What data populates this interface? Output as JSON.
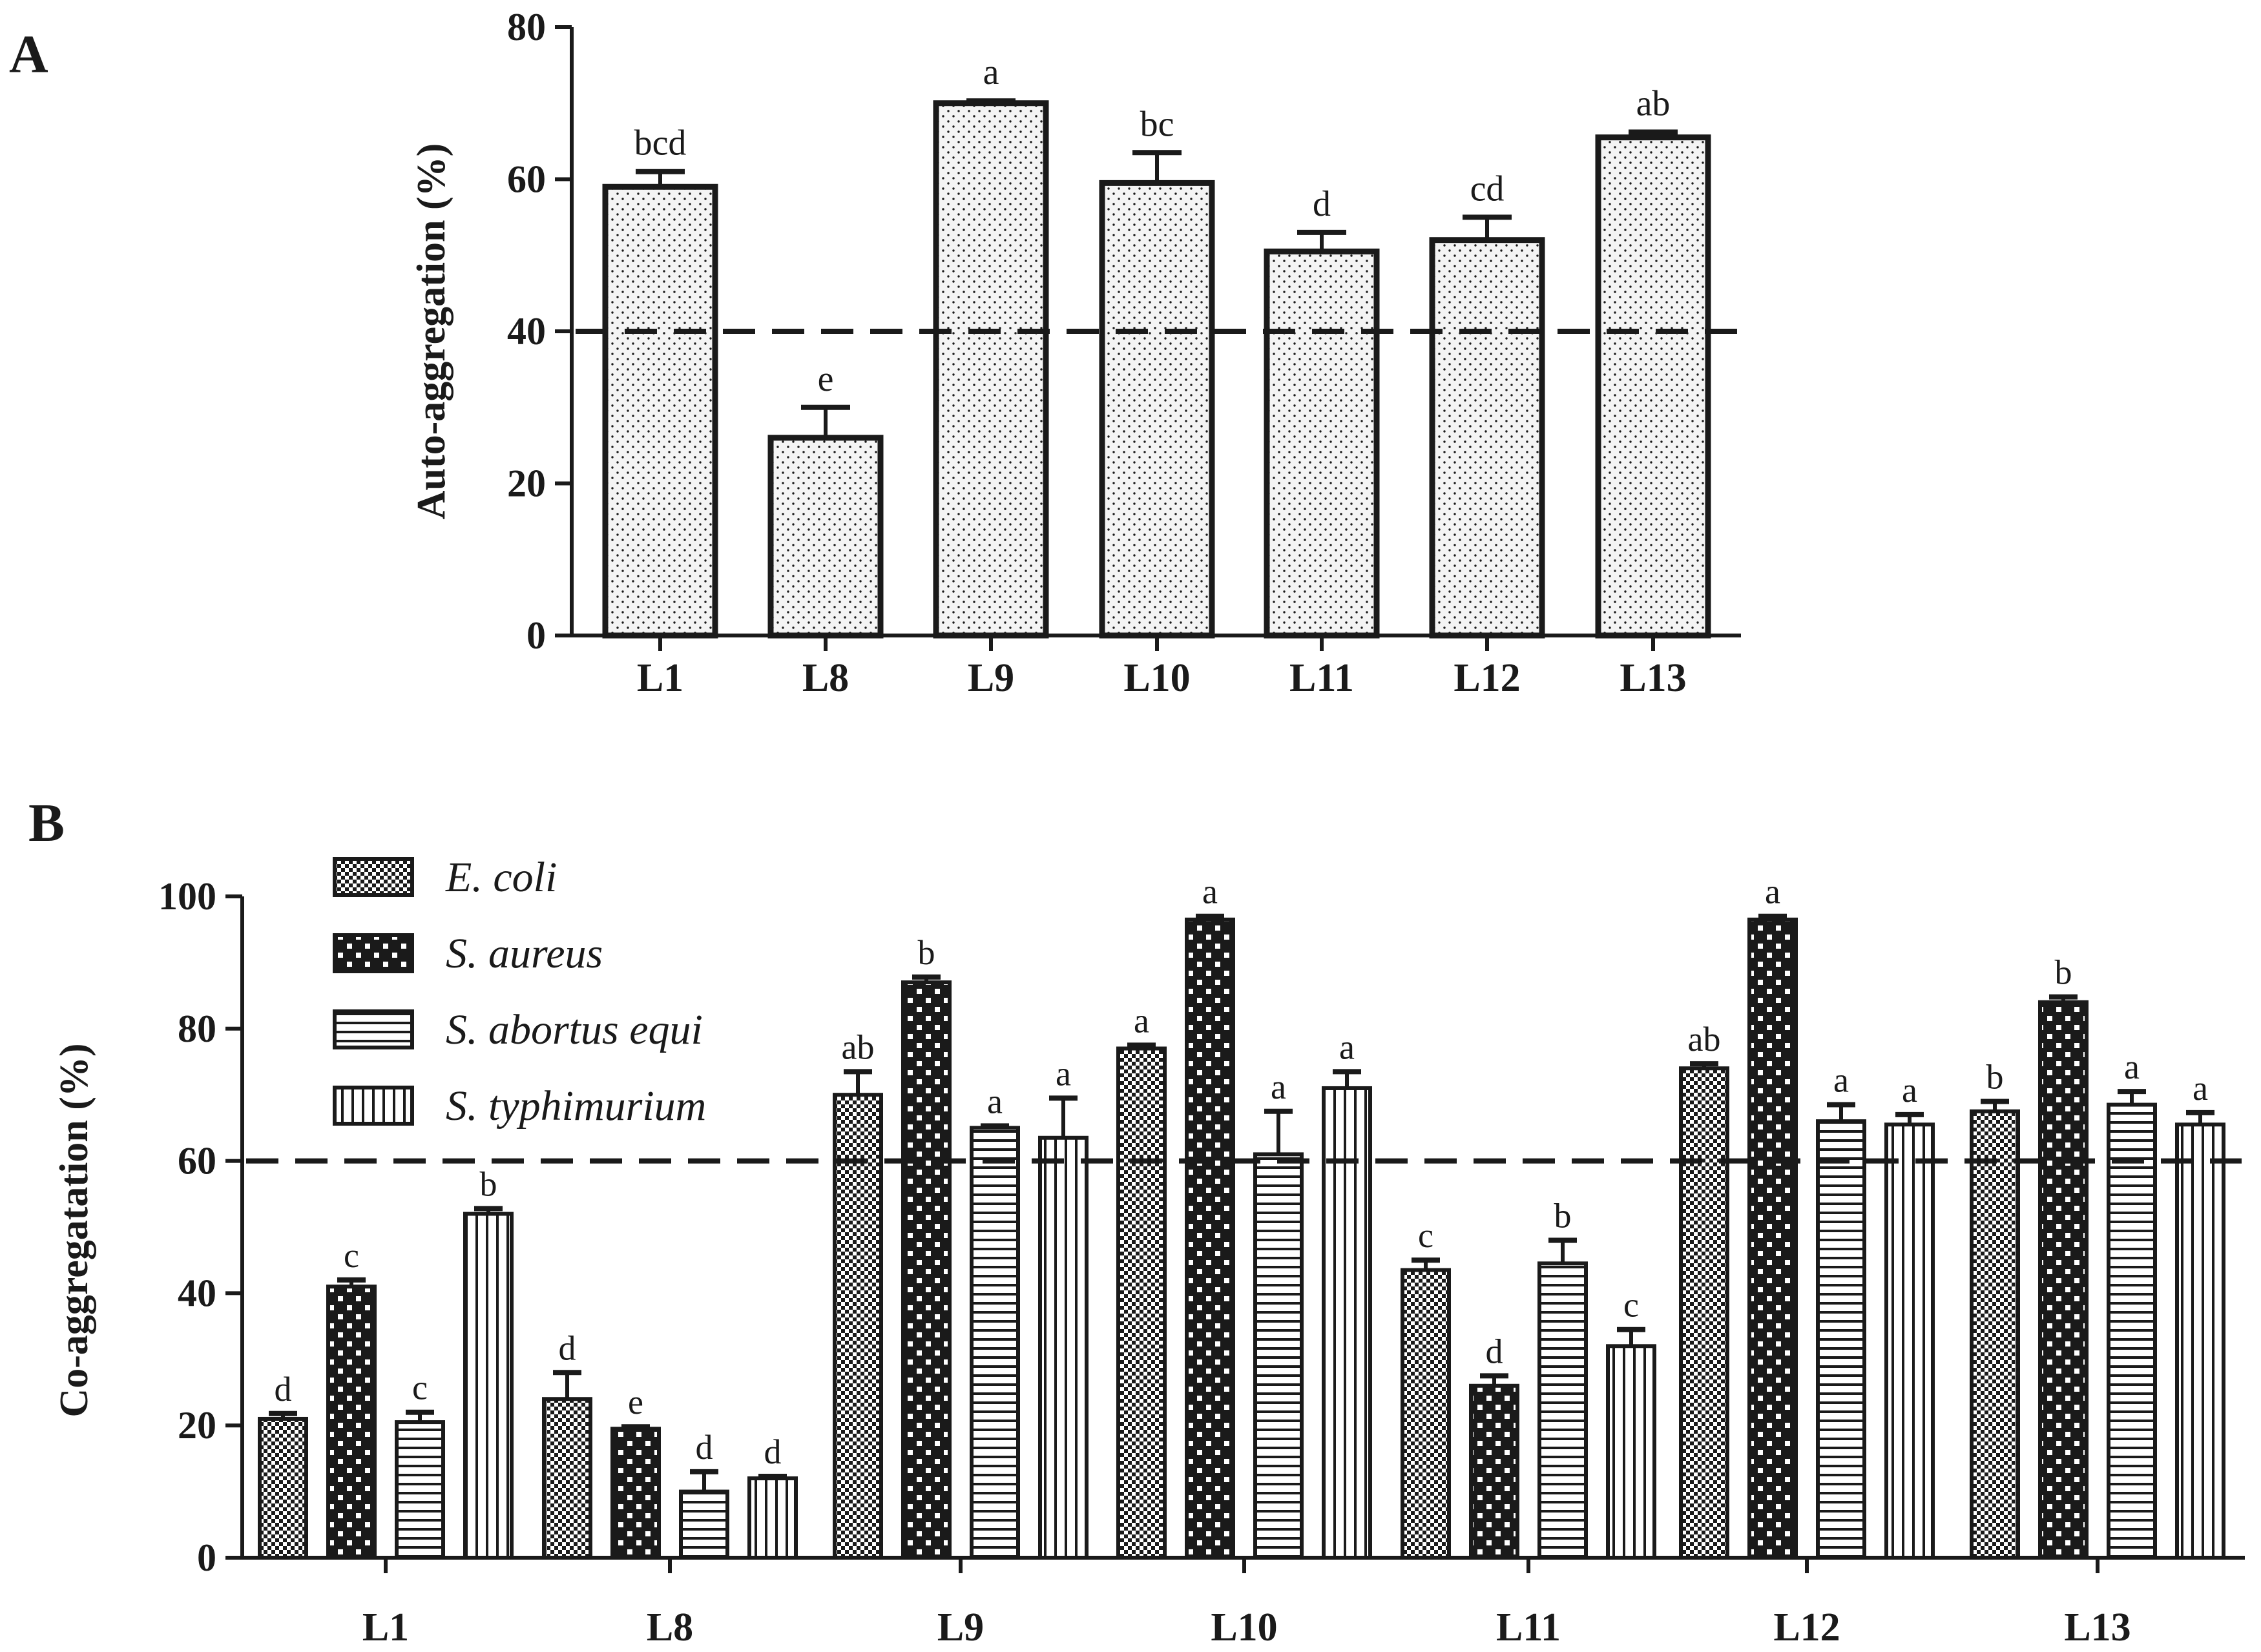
{
  "colors": {
    "ink": "#1a1a1a",
    "background": "#ffffff",
    "bar_fill": "#f4f4f4"
  },
  "chart_data": [
    {
      "panel": "A",
      "type": "bar",
      "title": "",
      "xlabel": "",
      "ylabel": "Auto-aggregation (%)",
      "ylim": [
        0,
        80
      ],
      "yticks": [
        0,
        20,
        40,
        60,
        80
      ],
      "ytick_labels": [
        "0",
        "20",
        "40",
        "60",
        "80"
      ],
      "categories": [
        "L1",
        "L8",
        "L9",
        "L10",
        "L11",
        "L12",
        "L13"
      ],
      "series": [
        {
          "name": "Auto-aggregation",
          "pattern": "dots",
          "values": [
            59,
            26,
            70,
            59.5,
            50.5,
            52,
            65.5
          ],
          "errors": [
            2,
            4,
            0.3,
            4,
            2.5,
            3,
            0.7
          ],
          "letters": [
            "bcd",
            "e",
            "a",
            "bc",
            "d",
            "cd",
            "ab"
          ]
        }
      ],
      "reference_line": 40,
      "grid": false,
      "legend": "none"
    },
    {
      "panel": "B",
      "type": "bar",
      "title": "",
      "xlabel": "",
      "ylabel": "Co-aggregatation (%)",
      "ylim": [
        0,
        100
      ],
      "yticks": [
        0,
        20,
        40,
        60,
        80,
        100
      ],
      "ytick_labels": [
        "0",
        "20",
        "40",
        "60",
        "80",
        "100"
      ],
      "categories": [
        "L1",
        "L8",
        "L9",
        "L10",
        "L11",
        "L12",
        "L13"
      ],
      "series": [
        {
          "name": "E. coli",
          "pattern": "fine-check",
          "values": [
            21,
            24,
            70,
            77,
            43.5,
            74,
            67.5
          ],
          "errors": [
            0.8,
            4,
            3.5,
            0.5,
            1.5,
            0.7,
            1.5
          ],
          "letters": [
            "d",
            "d",
            "ab",
            "a",
            "c",
            "ab",
            "b"
          ]
        },
        {
          "name": "S. aureus",
          "pattern": "coarse-check",
          "values": [
            41,
            19.5,
            87,
            96.5,
            26,
            96.5,
            84
          ],
          "errors": [
            1,
            0.3,
            0.8,
            0.5,
            1.5,
            0.5,
            0.8
          ],
          "letters": [
            "c",
            "e",
            "b",
            "a",
            "d",
            "a",
            "b"
          ]
        },
        {
          "name": "S. abortus equi",
          "pattern": "horizontal-lines",
          "values": [
            20.5,
            10,
            65,
            61,
            44.5,
            66,
            68.5
          ],
          "errors": [
            1.5,
            3,
            0.3,
            6.5,
            3.5,
            2.5,
            2
          ],
          "letters": [
            "c",
            "d",
            "a",
            "a",
            "b",
            "a",
            "a"
          ]
        },
        {
          "name": "S. typhimurium",
          "pattern": "vertical-lines",
          "values": [
            52,
            12,
            63.5,
            71,
            32,
            65.5,
            65.5
          ],
          "errors": [
            0.8,
            0.3,
            6,
            2.5,
            2.5,
            1.5,
            1.8
          ],
          "letters": [
            "b",
            "d",
            "a",
            "a",
            "c",
            "a",
            "a"
          ]
        }
      ],
      "reference_line": 60,
      "grid": false,
      "legend": "top-left"
    }
  ]
}
